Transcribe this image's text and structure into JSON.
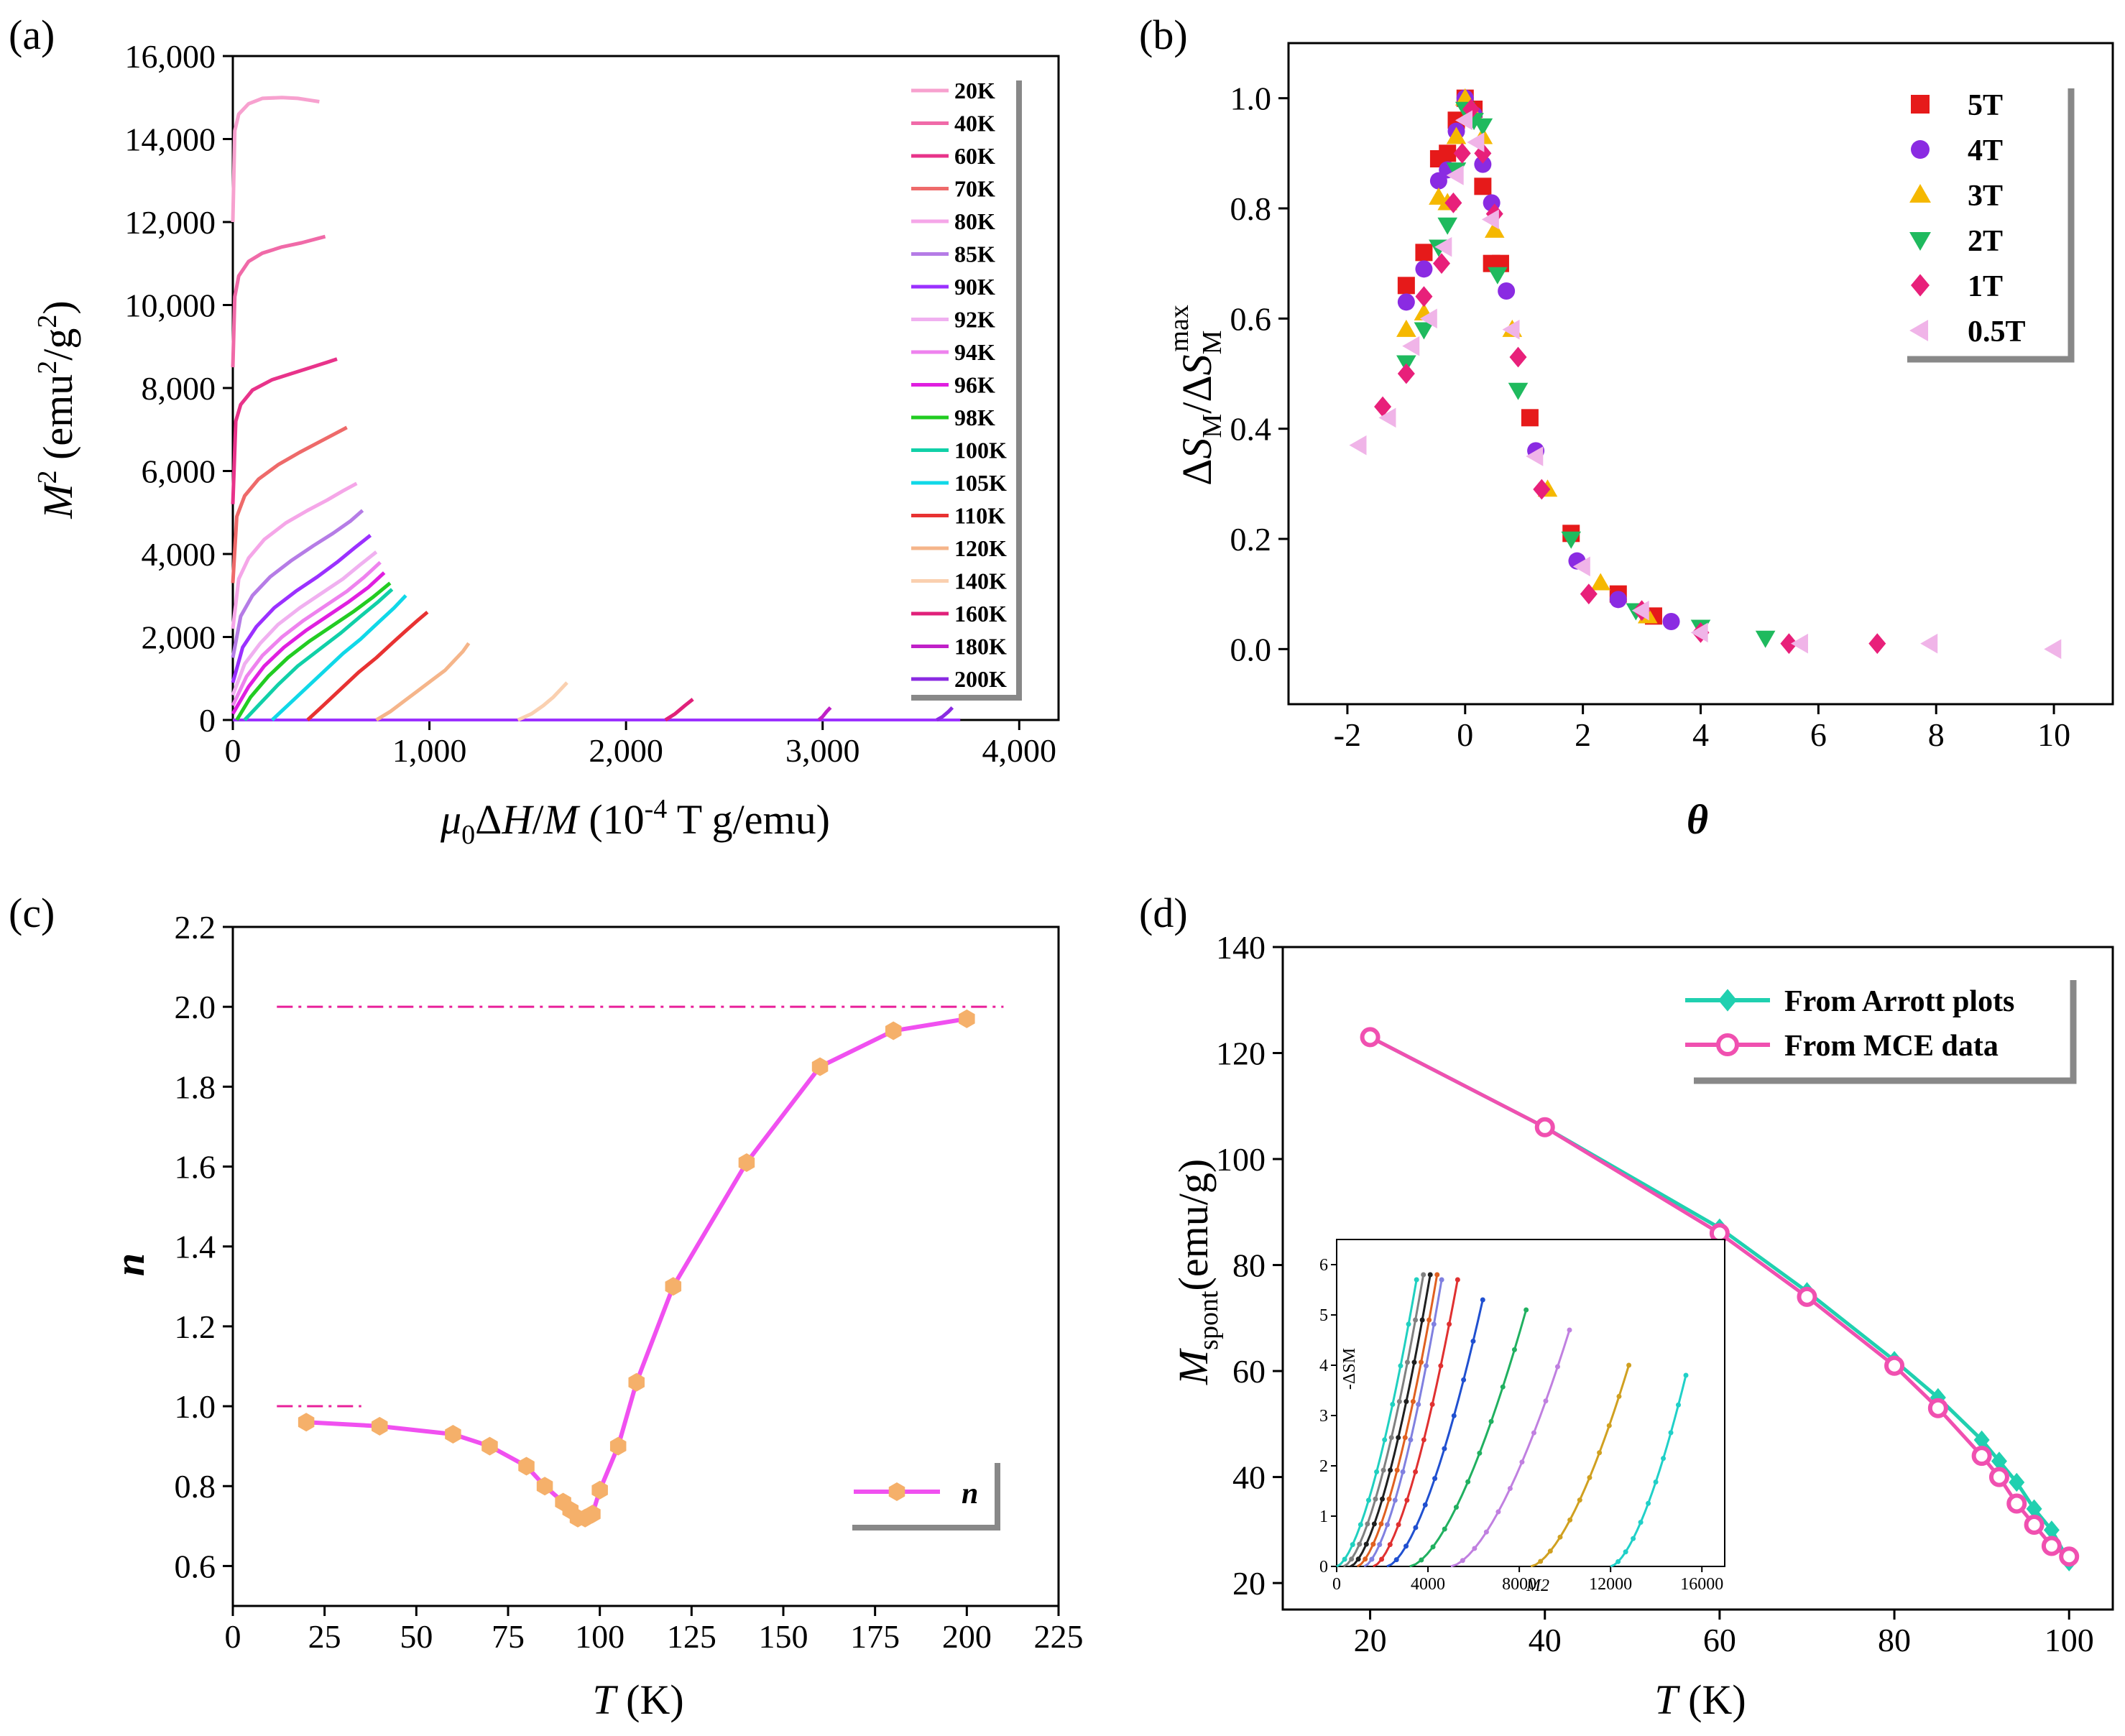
{
  "panels": {
    "a": {
      "letter": "(a)",
      "xlabel": "μ0ΔH/M (10-4 T g/emu)",
      "ylabel": "M2 (emu2/g2)",
      "xticks": [
        "0",
        "1,000",
        "2,000",
        "3,000",
        "4,000"
      ],
      "yticks": [
        "0",
        "2,000",
        "4,000",
        "6,000",
        "8,000",
        "10,000",
        "12,000",
        "14,000",
        "16,000"
      ]
    },
    "b": {
      "letter": "(b)",
      "xlabel": "θ",
      "ylabel": "ΔSM/ΔSMmax",
      "xticks": [
        "-2",
        "0",
        "2",
        "4",
        "6",
        "8",
        "10"
      ],
      "yticks": [
        "0.0",
        "0.2",
        "0.4",
        "0.6",
        "0.8",
        "1.0"
      ]
    },
    "c": {
      "letter": "(c)",
      "xlabel": "T (K)",
      "ylabel": "n",
      "xticks": [
        "0",
        "25",
        "50",
        "75",
        "100",
        "125",
        "150",
        "175",
        "200",
        "225"
      ],
      "yticks": [
        "0.6",
        "0.8",
        "1.0",
        "1.2",
        "1.4",
        "1.6",
        "1.8",
        "2.0",
        "2.2"
      ]
    },
    "d": {
      "letter": "(d)",
      "xlabel": "T (K)",
      "ylabel": "Mspont(emu/g)",
      "xticks": [
        "20",
        "40",
        "60",
        "80",
        "100"
      ],
      "yticks": [
        "20",
        "40",
        "60",
        "80",
        "100",
        "120",
        "140"
      ],
      "inset_xlabel": "M2",
      "inset_ylabel": "-ΔSM",
      "inset_xticks": [
        "0",
        "4000",
        "8000",
        "12000",
        "16000"
      ],
      "inset_yticks": [
        "0",
        "1",
        "2",
        "3",
        "4",
        "5",
        "6"
      ]
    }
  },
  "chart_data": [
    {
      "panel": "a",
      "type": "line",
      "xlim": [
        0,
        4200
      ],
      "ylim": [
        0,
        16000
      ],
      "series": [
        {
          "name": "20K",
          "color": "#f7a1cf",
          "x": [
            0,
            10,
            30,
            80,
            150,
            250,
            330,
            400,
            440
          ],
          "y": [
            12000,
            14200,
            14600,
            14850,
            14980,
            15000,
            14980,
            14930,
            14900
          ]
        },
        {
          "name": "40K",
          "color": "#f06aa8",
          "x": [
            0,
            10,
            30,
            80,
            150,
            250,
            350,
            430,
            470
          ],
          "y": [
            8500,
            10200,
            10700,
            11050,
            11250,
            11400,
            11500,
            11600,
            11650
          ]
        },
        {
          "name": "60K",
          "color": "#e8338a",
          "x": [
            0,
            15,
            40,
            100,
            200,
            300,
            400,
            480,
            530
          ],
          "y": [
            5200,
            7200,
            7600,
            7950,
            8200,
            8350,
            8500,
            8620,
            8700
          ]
        },
        {
          "name": "70K",
          "color": "#ee6a6a",
          "x": [
            0,
            20,
            60,
            130,
            230,
            340,
            440,
            520,
            580
          ],
          "y": [
            3300,
            4900,
            5400,
            5800,
            6150,
            6450,
            6700,
            6900,
            7050
          ]
        },
        {
          "name": "80K",
          "color": "#f5a6e8",
          "x": [
            0,
            30,
            80,
            160,
            270,
            380,
            480,
            560,
            630
          ],
          "y": [
            2200,
            3400,
            3900,
            4350,
            4750,
            5050,
            5300,
            5520,
            5700
          ]
        },
        {
          "name": "85K",
          "color": "#b57ce6",
          "x": [
            0,
            40,
            100,
            190,
            300,
            410,
            510,
            600,
            660
          ],
          "y": [
            1500,
            2500,
            3000,
            3450,
            3850,
            4200,
            4500,
            4800,
            5050
          ]
        },
        {
          "name": "90K",
          "color": "#9b30ff",
          "x": [
            0,
            50,
            120,
            210,
            320,
            430,
            530,
            620,
            700
          ],
          "y": [
            900,
            1750,
            2250,
            2700,
            3100,
            3450,
            3800,
            4150,
            4450
          ]
        },
        {
          "name": "92K",
          "color": "#f0b0f0",
          "x": [
            0,
            60,
            140,
            230,
            340,
            450,
            560,
            650,
            730
          ],
          "y": [
            600,
            1350,
            1850,
            2300,
            2700,
            3050,
            3400,
            3750,
            4050
          ]
        },
        {
          "name": "94K",
          "color": "#ee82ee",
          "x": [
            0,
            70,
            150,
            250,
            360,
            470,
            580,
            670,
            750
          ],
          "y": [
            350,
            1050,
            1550,
            2000,
            2400,
            2750,
            3100,
            3450,
            3800
          ]
        },
        {
          "name": "96K",
          "color": "#e01fe0",
          "x": [
            0,
            80,
            160,
            260,
            370,
            480,
            590,
            690,
            770
          ],
          "y": [
            150,
            800,
            1300,
            1750,
            2150,
            2500,
            2850,
            3200,
            3550
          ]
        },
        {
          "name": "98K",
          "color": "#22cc22",
          "x": [
            20,
            90,
            180,
            280,
            390,
            500,
            610,
            710,
            800
          ],
          "y": [
            0,
            550,
            1050,
            1500,
            1900,
            2250,
            2600,
            2950,
            3300
          ]
        },
        {
          "name": "100K",
          "color": "#10d0a8",
          "x": [
            60,
            140,
            230,
            330,
            440,
            550,
            650,
            740,
            810
          ],
          "y": [
            0,
            400,
            850,
            1300,
            1700,
            2100,
            2500,
            2850,
            3150
          ]
        },
        {
          "name": "105K",
          "color": "#10d8e8",
          "x": [
            200,
            290,
            380,
            470,
            560,
            650,
            740,
            820,
            880
          ],
          "y": [
            0,
            400,
            800,
            1200,
            1600,
            1950,
            2350,
            2700,
            3000
          ]
        },
        {
          "name": "110K",
          "color": "#e83232",
          "x": [
            380,
            460,
            550,
            640,
            730,
            810,
            880,
            940,
            990
          ],
          "y": [
            0,
            350,
            750,
            1150,
            1500,
            1850,
            2150,
            2400,
            2600
          ]
        },
        {
          "name": "120K",
          "color": "#f5b58a",
          "x": [
            730,
            800,
            870,
            940,
            1010,
            1080,
            1130,
            1170,
            1200
          ],
          "y": [
            0,
            200,
            450,
            700,
            950,
            1200,
            1450,
            1650,
            1850
          ]
        },
        {
          "name": "140K",
          "color": "#fad0b0",
          "x": [
            1450,
            1520,
            1580,
            1630,
            1670,
            1700
          ],
          "y": [
            0,
            150,
            350,
            550,
            750,
            900
          ]
        },
        {
          "name": "160K",
          "color": "#e0207a",
          "x": [
            2200,
            2250,
            2300,
            2340
          ],
          "y": [
            0,
            150,
            350,
            500
          ]
        },
        {
          "name": "180K",
          "color": "#c020c8",
          "x": [
            2980,
            3000,
            3020,
            3040
          ],
          "y": [
            0,
            80,
            200,
            300
          ]
        },
        {
          "name": "200K",
          "color": "#8a2be2",
          "x": [
            3580,
            3610,
            3640,
            3660
          ],
          "y": [
            0,
            80,
            200,
            300
          ]
        }
      ]
    },
    {
      "panel": "b",
      "type": "scatter",
      "xlim": [
        -3,
        11
      ],
      "ylim": [
        -0.1,
        1.1
      ],
      "series": [
        {
          "name": "5T",
          "color": "#e61a1a",
          "marker": "square",
          "x": [
            -1.0,
            -0.7,
            -0.45,
            -0.3,
            -0.15,
            0.0,
            0.15,
            0.3,
            0.45,
            0.6,
            1.1,
            1.8,
            2.6,
            3.2
          ],
          "y": [
            0.66,
            0.72,
            0.89,
            0.9,
            0.96,
            1.0,
            0.98,
            0.84,
            0.7,
            0.7,
            0.42,
            0.21,
            0.1,
            0.06
          ]
        },
        {
          "name": "4T",
          "color": "#8a2be2",
          "marker": "circle",
          "x": [
            -1.0,
            -0.7,
            -0.45,
            -0.3,
            -0.15,
            0.0,
            0.15,
            0.3,
            0.45,
            0.7,
            1.2,
            1.9,
            2.6,
            3.5
          ],
          "y": [
            0.63,
            0.69,
            0.85,
            0.87,
            0.94,
            1.0,
            0.97,
            0.88,
            0.81,
            0.65,
            0.36,
            0.16,
            0.09,
            0.05
          ]
        },
        {
          "name": "3T",
          "color": "#f5b800",
          "marker": "triangle-up",
          "x": [
            -1.0,
            -0.7,
            -0.45,
            -0.3,
            -0.15,
            0.0,
            0.15,
            0.3,
            0.5,
            0.8,
            1.4,
            2.3,
            3.1
          ],
          "y": [
            0.58,
            0.61,
            0.82,
            0.81,
            0.93,
            1.0,
            0.97,
            0.93,
            0.76,
            0.58,
            0.29,
            0.12,
            0.06
          ]
        },
        {
          "name": "2T",
          "color": "#1fba5e",
          "marker": "triangle-down",
          "x": [
            -1.0,
            -0.7,
            -0.45,
            -0.3,
            -0.15,
            0.0,
            0.15,
            0.3,
            0.55,
            0.9,
            1.8,
            2.9,
            4.0,
            5.1
          ],
          "y": [
            0.52,
            0.58,
            0.73,
            0.77,
            0.87,
            0.98,
            0.96,
            0.95,
            0.68,
            0.47,
            0.2,
            0.07,
            0.04,
            0.02
          ]
        },
        {
          "name": "1T",
          "color": "#e8207a",
          "marker": "diamond",
          "x": [
            -1.4,
            -1.0,
            -0.7,
            -0.4,
            -0.2,
            -0.05,
            0.1,
            0.3,
            0.5,
            0.9,
            1.3,
            2.1,
            3.0,
            4.0,
            5.5,
            7.0
          ],
          "y": [
            0.44,
            0.5,
            0.64,
            0.7,
            0.81,
            0.9,
            0.98,
            0.9,
            0.79,
            0.53,
            0.29,
            0.1,
            0.07,
            0.03,
            0.01,
            0.01
          ]
        },
        {
          "name": "0.5T",
          "color": "#f0b4e8",
          "marker": "triangle-left",
          "x": [
            -1.8,
            -1.3,
            -0.9,
            -0.6,
            -0.35,
            -0.15,
            0.0,
            0.2,
            0.45,
            0.8,
            1.2,
            2.0,
            3.0,
            4.0,
            5.7,
            7.9,
            10.0
          ],
          "y": [
            0.37,
            0.42,
            0.55,
            0.6,
            0.73,
            0.86,
            0.96,
            0.92,
            0.78,
            0.58,
            0.35,
            0.15,
            0.07,
            0.03,
            0.01,
            0.01,
            0.0
          ]
        }
      ]
    },
    {
      "panel": "c",
      "type": "line",
      "xlim": [
        0,
        225
      ],
      "ylim": [
        0.5,
        2.2
      ],
      "series": [
        {
          "name": "n",
          "color": "#f050f0",
          "marker_color": "#f5b06a",
          "x": [
            20,
            40,
            60,
            70,
            80,
            85,
            90,
            92,
            94,
            96,
            98,
            100,
            105,
            110,
            120,
            140,
            160,
            180,
            200
          ],
          "y": [
            0.96,
            0.95,
            0.93,
            0.9,
            0.85,
            0.8,
            0.76,
            0.74,
            0.72,
            0.72,
            0.73,
            0.79,
            0.9,
            1.06,
            1.3,
            1.61,
            1.85,
            1.94,
            1.97
          ]
        }
      ],
      "reference_lines": [
        {
          "y": 2.0,
          "x": [
            12,
            210
          ],
          "color": "#e8209a",
          "style": "dash-dot"
        },
        {
          "y": 1.0,
          "x": [
            12,
            35
          ],
          "color": "#e8209a",
          "style": "dash-dot"
        }
      ]
    },
    {
      "panel": "d",
      "type": "line",
      "xlim": [
        10,
        105
      ],
      "ylim": [
        15,
        140
      ],
      "series": [
        {
          "name": "From Arrott plots",
          "color": "#20d0b0",
          "marker": "diamond",
          "x": [
            20,
            40,
            60,
            70,
            80,
            85,
            90,
            92,
            94,
            96,
            98,
            100
          ],
          "y": [
            123,
            106,
            87,
            75,
            62,
            55,
            47,
            43,
            39,
            34,
            30,
            24
          ]
        },
        {
          "name": "From MCE data",
          "color": "#f050b0",
          "marker": "circle",
          "x": [
            20,
            40,
            60,
            70,
            80,
            85,
            90,
            92,
            94,
            96,
            98,
            100
          ],
          "y": [
            123,
            106,
            86,
            74,
            61,
            53,
            44,
            40,
            35,
            31,
            27,
            25
          ]
        }
      ],
      "inset": {
        "type": "line",
        "xlim": [
          0,
          17000
        ],
        "ylim": [
          0,
          6.5
        ],
        "curves": [
          {
            "color": "#20d0c0",
            "x0": 0,
            "x1": 3500,
            "ytop": 5.7
          },
          {
            "color": "#808080",
            "x0": 300,
            "x1": 3800,
            "ytop": 5.8
          },
          {
            "color": "#202020",
            "x0": 600,
            "x1": 4100,
            "ytop": 5.8
          },
          {
            "color": "#e06020",
            "x0": 900,
            "x1": 4400,
            "ytop": 5.8
          },
          {
            "color": "#8080e0",
            "x0": 1200,
            "x1": 4600,
            "ytop": 5.7
          },
          {
            "color": "#e03030",
            "x0": 1600,
            "x1": 5300,
            "ytop": 5.7
          },
          {
            "color": "#2050d0",
            "x0": 2200,
            "x1": 6400,
            "ytop": 5.3
          },
          {
            "color": "#20b060",
            "x0": 3200,
            "x1": 8300,
            "ytop": 5.1
          },
          {
            "color": "#c080e0",
            "x0": 5000,
            "x1": 10200,
            "ytop": 4.7
          },
          {
            "color": "#d0a020",
            "x0": 8500,
            "x1": 12800,
            "ytop": 4.0
          },
          {
            "color": "#20d0c8",
            "x0": 12000,
            "x1": 15300,
            "ytop": 3.8
          }
        ]
      }
    }
  ]
}
